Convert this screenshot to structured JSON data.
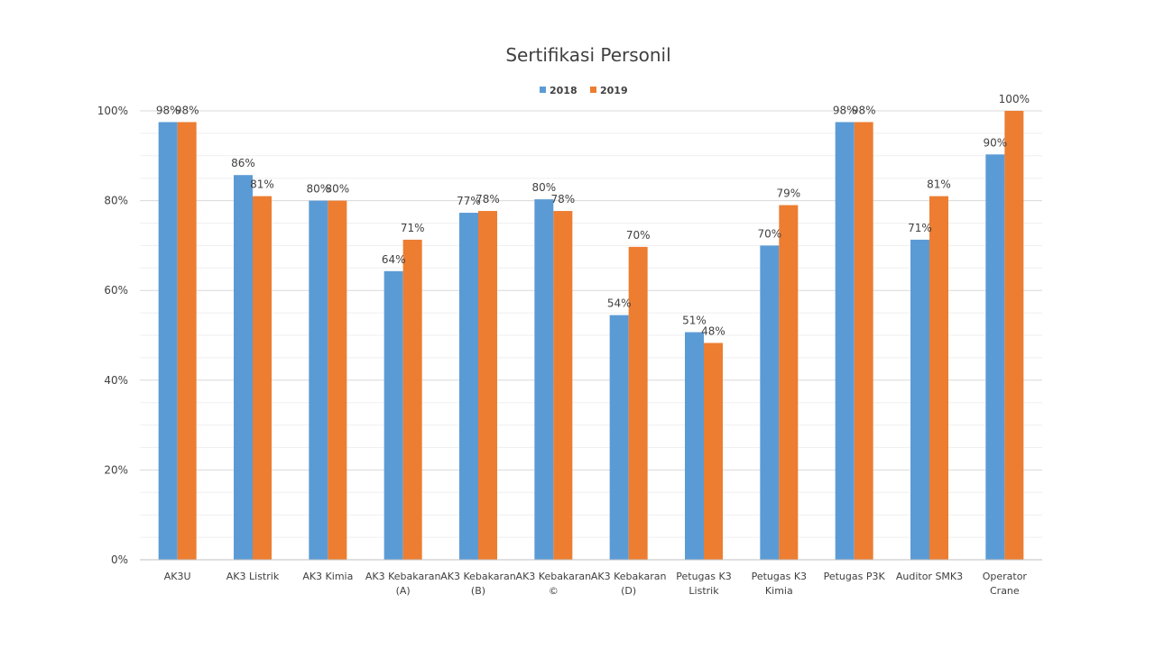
{
  "chart_data": {
    "type": "bar",
    "title": "Sertifikasi Personil",
    "xlabel": "",
    "ylabel": "",
    "ylim": [
      0,
      100
    ],
    "yticks": [
      "0%",
      "20%",
      "40%",
      "60%",
      "80%",
      "100%"
    ],
    "grid": true,
    "legend_position": "top",
    "categories": [
      [
        "AK3U"
      ],
      [
        "AK3 Listrik"
      ],
      [
        "AK3 Kimia"
      ],
      [
        "AK3 Kebakaran",
        "(A)"
      ],
      [
        "AK3 Kebakaran",
        "(B)"
      ],
      [
        "AK3 Kebakaran",
        "©"
      ],
      [
        "AK3 Kebakaran",
        "(D)"
      ],
      [
        "Petugas K3",
        "Listrik"
      ],
      [
        "Petugas K3",
        "Kimia"
      ],
      [
        "Petugas P3K"
      ],
      [
        "Auditor SMK3"
      ],
      [
        "Operator",
        "Crane"
      ]
    ],
    "series": [
      {
        "name": "2018",
        "color": "#5B9BD5",
        "values": [
          97.5,
          85.7,
          80.0,
          64.3,
          77.3,
          80.3,
          54.5,
          50.7,
          70.0,
          97.5,
          71.3,
          90.3
        ],
        "labels": [
          "98%",
          "86%",
          "80%",
          "64%",
          "77%",
          "80%",
          "54%",
          "51%",
          "70%",
          "98%",
          "71%",
          "90%"
        ]
      },
      {
        "name": "2019",
        "color": "#ED7D31",
        "values": [
          97.5,
          81.0,
          80.0,
          71.3,
          77.7,
          77.7,
          69.7,
          48.3,
          79.0,
          97.5,
          81.0,
          100.0
        ],
        "labels": [
          "98%",
          "81%",
          "80%",
          "71%",
          "78%",
          "78%",
          "70%",
          "48%",
          "79%",
          "98%",
          "81%",
          "100%"
        ]
      }
    ]
  }
}
